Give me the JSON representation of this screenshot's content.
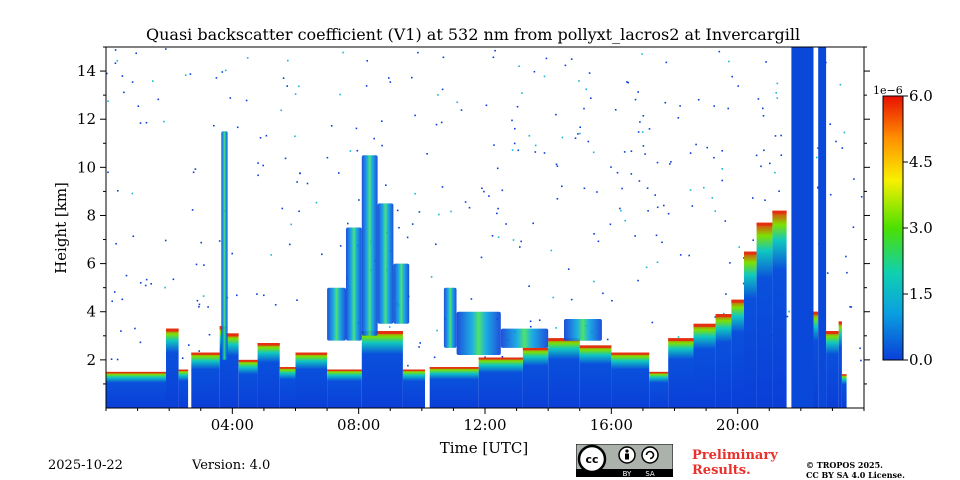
{
  "chart_data": {
    "type": "heatmap",
    "title": "Quasi backscatter coefficient (V1) at 532 nm from pollyxt_lacros2 at Invercargill",
    "xlabel": "Time [UTC]",
    "ylabel": "Height [km]",
    "x_range_hours": [
      0,
      24
    ],
    "y_range_km": [
      0,
      15
    ],
    "x_ticks": [
      {
        "hour": 4,
        "label": "04:00"
      },
      {
        "hour": 8,
        "label": "08:00"
      },
      {
        "hour": 12,
        "label": "12:00"
      },
      {
        "hour": 16,
        "label": "16:00"
      },
      {
        "hour": 20,
        "label": "20:00"
      }
    ],
    "y_ticks": [
      {
        "km": 2,
        "label": "2"
      },
      {
        "km": 4,
        "label": "4"
      },
      {
        "km": 6,
        "label": "6"
      },
      {
        "km": 8,
        "label": "8"
      },
      {
        "km": 10,
        "label": "10"
      },
      {
        "km": 12,
        "label": "12"
      },
      {
        "km": 14,
        "label": "14"
      }
    ],
    "colorbar": {
      "exponent_label": "1e−6",
      "range": [
        0,
        6
      ],
      "ticks": [
        {
          "value": 0,
          "label": "0.0"
        },
        {
          "value": 1.5,
          "label": "1.5"
        },
        {
          "value": 3,
          "label": "3.0"
        },
        {
          "value": 4.5,
          "label": "4.5"
        },
        {
          "value": 6,
          "label": "6.0"
        }
      ],
      "colors": [
        "#0a3fd8",
        "#0aa0e0",
        "#10d0b0",
        "#4ce000",
        "#f8f000",
        "#ff9000",
        "#e81000"
      ]
    },
    "background_layer": {
      "segments": [
        {
          "t0": 0.0,
          "t1": 1.9,
          "top": 1.5
        },
        {
          "t0": 1.9,
          "t1": 2.3,
          "top": 3.3
        },
        {
          "t0": 2.3,
          "t1": 2.6,
          "top": 1.6
        },
        {
          "t0": 2.7,
          "t1": 3.6,
          "top": 2.3
        },
        {
          "t0": 3.6,
          "t1": 3.8,
          "top": 3.4
        },
        {
          "t0": 3.8,
          "t1": 4.2,
          "top": 3.1
        },
        {
          "t0": 4.2,
          "t1": 4.8,
          "top": 2.0
        },
        {
          "t0": 4.8,
          "t1": 5.5,
          "top": 2.7
        },
        {
          "t0": 5.5,
          "t1": 6.0,
          "top": 1.7
        },
        {
          "t0": 6.0,
          "t1": 7.0,
          "top": 2.3
        },
        {
          "t0": 7.0,
          "t1": 8.1,
          "top": 1.6
        },
        {
          "t0": 8.1,
          "t1": 9.4,
          "top": 3.2
        },
        {
          "t0": 9.4,
          "t1": 10.1,
          "top": 1.6
        },
        {
          "t0": 10.25,
          "t1": 11.8,
          "top": 1.7
        },
        {
          "t0": 11.8,
          "t1": 13.2,
          "top": 2.1
        },
        {
          "t0": 13.2,
          "t1": 14.0,
          "top": 2.5
        },
        {
          "t0": 14.0,
          "t1": 15.0,
          "top": 2.9
        },
        {
          "t0": 15.0,
          "t1": 16.0,
          "top": 2.6
        },
        {
          "t0": 16.0,
          "t1": 17.2,
          "top": 2.3
        },
        {
          "t0": 17.2,
          "t1": 17.8,
          "top": 1.5
        },
        {
          "t0": 17.8,
          "t1": 18.6,
          "top": 2.9
        },
        {
          "t0": 18.6,
          "t1": 19.3,
          "top": 3.5
        },
        {
          "t0": 19.3,
          "t1": 19.8,
          "top": 3.9
        },
        {
          "t0": 19.8,
          "t1": 20.2,
          "top": 4.5
        },
        {
          "t0": 20.2,
          "t1": 20.6,
          "top": 6.5
        },
        {
          "t0": 20.6,
          "t1": 21.1,
          "top": 7.7
        },
        {
          "t0": 21.1,
          "t1": 21.55,
          "top": 8.2
        },
        {
          "t0": 21.7,
          "t1": 22.4,
          "top": 15.0
        },
        {
          "t0": 22.4,
          "t1": 22.55,
          "top": 4.0
        },
        {
          "t0": 22.55,
          "t1": 22.8,
          "top": 15.0
        },
        {
          "t0": 22.8,
          "t1": 23.2,
          "top": 3.2
        },
        {
          "t0": 23.2,
          "t1": 23.3,
          "top": 3.6
        },
        {
          "t0": 23.3,
          "t1": 23.45,
          "top": 1.4
        }
      ]
    },
    "aerosol_features": [
      {
        "t0": 3.65,
        "t1": 3.85,
        "bottom": 2.0,
        "top": 11.5
      },
      {
        "t0": 7.0,
        "t1": 7.6,
        "bottom": 2.8,
        "top": 5.0
      },
      {
        "t0": 7.6,
        "t1": 8.1,
        "bottom": 2.8,
        "top": 7.5
      },
      {
        "t0": 8.1,
        "t1": 8.6,
        "bottom": 3.0,
        "top": 10.5
      },
      {
        "t0": 8.6,
        "t1": 9.1,
        "bottom": 3.5,
        "top": 8.5
      },
      {
        "t0": 9.1,
        "t1": 9.6,
        "bottom": 3.5,
        "top": 6.0
      },
      {
        "t0": 10.7,
        "t1": 11.1,
        "bottom": 2.5,
        "top": 5.0
      },
      {
        "t0": 11.1,
        "t1": 12.5,
        "bottom": 2.2,
        "top": 4.0
      },
      {
        "t0": 12.5,
        "t1": 14.0,
        "bottom": 2.5,
        "top": 3.3
      },
      {
        "t0": 14.5,
        "t1": 15.7,
        "bottom": 2.8,
        "top": 3.7
      }
    ],
    "date": "2025-10-22",
    "version": "Version: 4.0"
  },
  "footer": {
    "badge_cc": "cc",
    "badge_by": "BY",
    "badge_sa": "SA",
    "preliminary_line1": "Preliminary",
    "preliminary_line2": "Results.",
    "copyright_line1": "© TROPOS 2025.",
    "copyright_line2": "CC BY SA 4.0 License."
  }
}
